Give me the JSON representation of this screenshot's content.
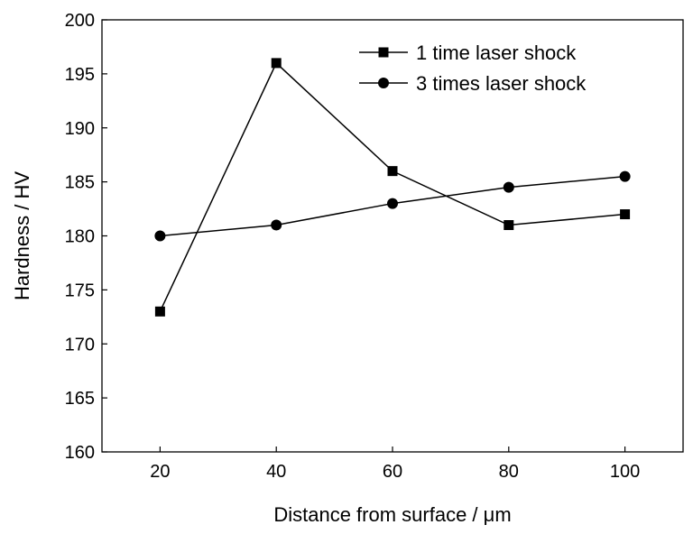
{
  "chart_data": {
    "type": "line",
    "title": "",
    "xlabel": "Distance from surface / μm",
    "ylabel": "Hardness / HV",
    "x": [
      20,
      40,
      60,
      80,
      100
    ],
    "xlim": [
      10,
      110
    ],
    "ylim": [
      160,
      200
    ],
    "x_ticks": [
      20,
      40,
      60,
      80,
      100
    ],
    "y_ticks": [
      160,
      165,
      170,
      175,
      180,
      185,
      190,
      195,
      200
    ],
    "grid": false,
    "legend_position": "top-right",
    "series": [
      {
        "name": "1 time laser shock",
        "marker": "square",
        "color": "#000000",
        "values": [
          173,
          196,
          186,
          181,
          182
        ]
      },
      {
        "name": "3 times laser shock",
        "marker": "circle",
        "color": "#000000",
        "values": [
          180,
          181,
          183,
          184.5,
          185.5
        ]
      }
    ]
  }
}
